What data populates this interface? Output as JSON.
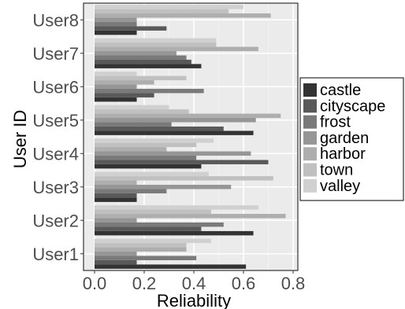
{
  "chart_data": {
    "type": "bar",
    "orientation": "horizontal",
    "xlabel": "Reliability",
    "ylabel": "User ID",
    "xlim": [
      0,
      0.8
    ],
    "xticks": [
      "0.0",
      "0.2",
      "0.4",
      "0.6",
      "0.8"
    ],
    "grid": true,
    "legend_position": "right",
    "categories": [
      "User1",
      "User2",
      "User3",
      "User4",
      "User5",
      "User6",
      "User7",
      "User8"
    ],
    "series": [
      {
        "name": "castle",
        "color": "#333333",
        "values": [
          0.61,
          0.64,
          0.17,
          0.43,
          0.64,
          0.17,
          0.43,
          0.17
        ]
      },
      {
        "name": "cityscape",
        "color": "#595959",
        "values": [
          0.17,
          0.43,
          0.17,
          0.7,
          0.52,
          0.24,
          0.39,
          0.29
        ]
      },
      {
        "name": "frost",
        "color": "#7a7a7a",
        "values": [
          0.41,
          0.52,
          0.29,
          0.41,
          0.31,
          0.44,
          0.37,
          0.17
        ]
      },
      {
        "name": "garden",
        "color": "#969696",
        "values": [
          0.17,
          0.17,
          0.55,
          0.63,
          0.65,
          0.17,
          0.33,
          0.17
        ]
      },
      {
        "name": "harbor",
        "color": "#aeaeae",
        "values": [
          0.37,
          0.77,
          0.17,
          0.29,
          0.75,
          0.24,
          0.66,
          0.71
        ]
      },
      {
        "name": "town",
        "color": "#c0c0c0",
        "values": [
          0.37,
          0.47,
          0.72,
          0.41,
          0.38,
          0.37,
          0.49,
          0.54
        ]
      },
      {
        "name": "valley",
        "color": "#d0d0d0",
        "values": [
          0.47,
          0.66,
          0.46,
          0.48,
          0.3,
          0.17,
          0.49,
          0.6
        ]
      }
    ]
  }
}
